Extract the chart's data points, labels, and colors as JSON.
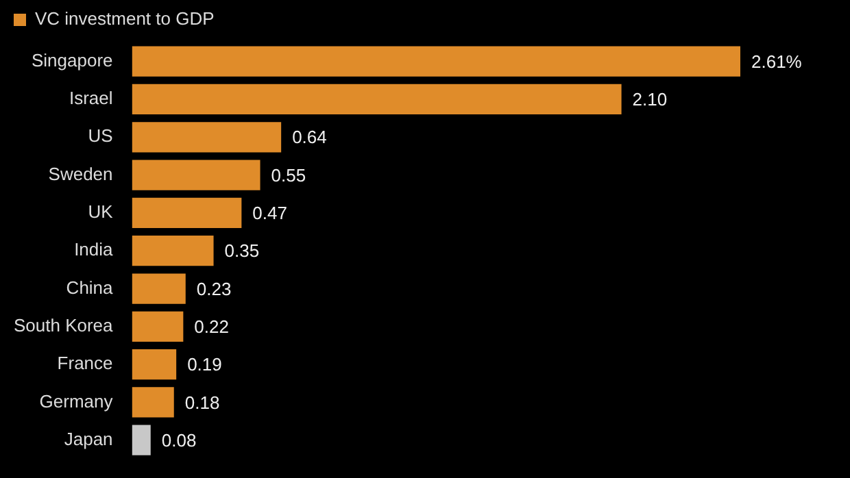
{
  "chart_data": {
    "type": "bar",
    "orientation": "horizontal",
    "legend": "top left",
    "categories": [
      "Singapore",
      "Israel",
      "US",
      "Sweden",
      "UK",
      "India",
      "China",
      "South Korea",
      "France",
      "Germany",
      "Japan"
    ],
    "series": [
      {
        "name": "VC investment to GDP",
        "color": "#e08c2a",
        "colors": [
          "#e08c2a",
          "#e08c2a",
          "#e08c2a",
          "#e08c2a",
          "#e08c2a",
          "#e08c2a",
          "#e08c2a",
          "#e08c2a",
          "#e08c2a",
          "#e08c2a",
          "#c8c8c8"
        ],
        "values": [
          2.61,
          2.1,
          0.64,
          0.55,
          0.47,
          0.35,
          0.23,
          0.22,
          0.19,
          0.18,
          0.08
        ],
        "value_labels": [
          "2.61%",
          "2.10",
          "0.64",
          "0.55",
          "0.47",
          "0.35",
          "0.23",
          "0.22",
          "0.19",
          "0.18",
          "0.08"
        ]
      }
    ]
  }
}
